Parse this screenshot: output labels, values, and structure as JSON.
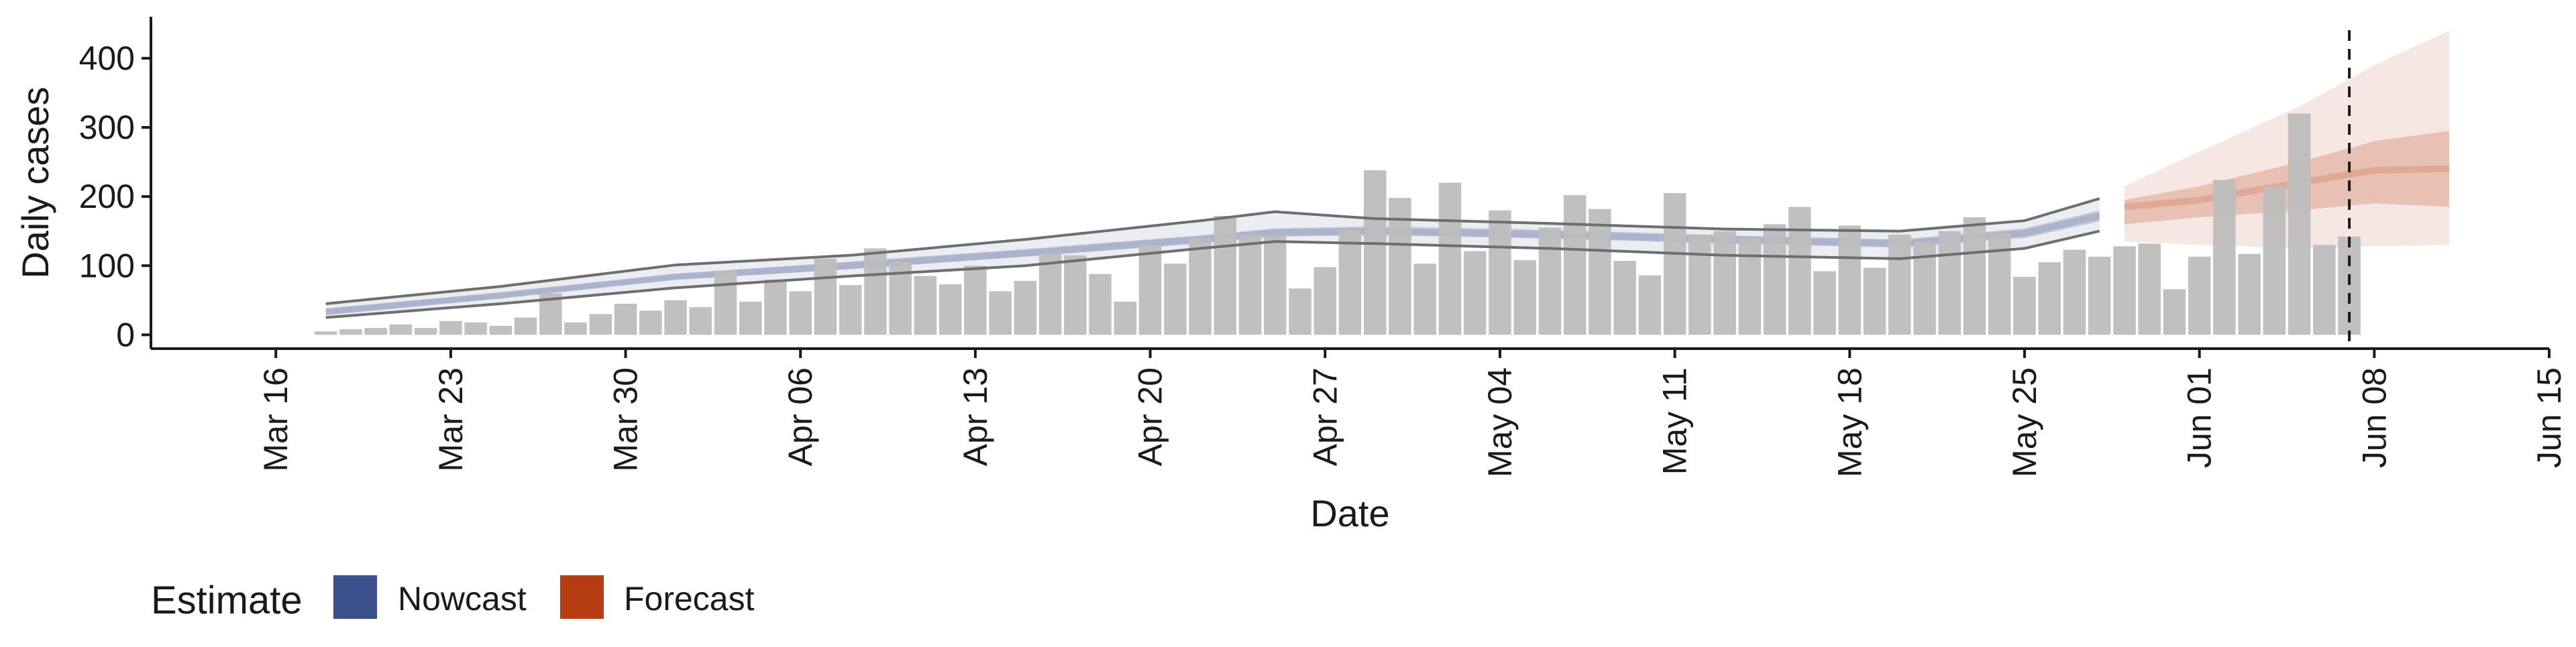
{
  "chart_data": {
    "type": "bar",
    "title": "",
    "xlabel": "Date",
    "ylabel": "Daily cases",
    "ylim": [
      -20,
      460
    ],
    "yticks": [
      0,
      100,
      200,
      300,
      400
    ],
    "xlim": [
      "2020-03-11",
      "2020-06-15"
    ],
    "xticks": [
      "2020-03-16",
      "2020-03-23",
      "2020-03-30",
      "2020-04-06",
      "2020-04-13",
      "2020-04-20",
      "2020-04-27",
      "2020-05-04",
      "2020-05-11",
      "2020-05-18",
      "2020-05-25",
      "2020-06-01",
      "2020-06-08",
      "2020-06-15"
    ],
    "xtick_labels": [
      "Mar 16",
      "Mar 23",
      "Mar 30",
      "Apr 06",
      "Apr 13",
      "Apr 20",
      "Apr 27",
      "May 04",
      "May 11",
      "May 18",
      "May 25",
      "Jun 01",
      "Jun 08",
      "Jun 15"
    ],
    "grid": false,
    "legend": {
      "title": "Estimate",
      "position": "bottom-left"
    },
    "bar_color": "#bdbdbd",
    "observed_cases": {
      "start_date": "2020-03-18",
      "values": [
        5,
        8,
        10,
        15,
        10,
        20,
        18,
        13,
        25,
        60,
        18,
        30,
        45,
        35,
        50,
        40,
        93,
        48,
        80,
        63,
        110,
        72,
        125,
        105,
        85,
        73,
        100,
        63,
        78,
        117,
        115,
        88,
        48,
        130,
        103,
        140,
        172,
        145,
        143,
        67,
        98,
        152,
        238,
        198,
        103,
        220,
        121,
        180,
        108,
        155,
        202,
        182,
        107,
        86,
        205,
        145,
        150,
        140,
        160,
        185,
        92,
        158,
        97,
        145,
        135,
        150,
        170,
        148,
        84,
        105,
        123,
        113,
        128,
        132,
        66,
        113,
        224,
        117,
        214,
        320,
        130,
        142
      ]
    },
    "series": [
      {
        "name": "Nowcast",
        "color": "#3b4f8b",
        "dates": [
          "2020-03-18",
          "2020-03-25",
          "2020-04-01",
          "2020-04-08",
          "2020-04-15",
          "2020-04-22",
          "2020-04-25",
          "2020-04-29",
          "2020-05-06",
          "2020-05-13",
          "2020-05-20",
          "2020-05-25",
          "2020-05-28"
        ],
        "median": [
          33,
          57,
          84,
          100,
          118,
          138,
          148,
          150,
          145,
          138,
          132,
          147,
          172
        ],
        "inner_lower": [
          29,
          53,
          80,
          95,
          113,
          132,
          142,
          144,
          139,
          132,
          126,
          140,
          164
        ],
        "inner_upper": [
          38,
          61,
          88,
          106,
          124,
          144,
          154,
          157,
          152,
          144,
          138,
          154,
          180
        ],
        "lower": [
          25,
          45,
          68,
          85,
          100,
          125,
          135,
          132,
          125,
          115,
          110,
          125,
          150
        ],
        "upper": [
          45,
          70,
          101,
          115,
          138,
          165,
          178,
          168,
          161,
          153,
          150,
          165,
          197
        ]
      },
      {
        "name": "Forecast",
        "color": "#b63c12",
        "dates": [
          "2020-05-29",
          "2020-06-01",
          "2020-06-05",
          "2020-06-08",
          "2020-06-11"
        ],
        "median": [
          185,
          195,
          220,
          238,
          240
        ],
        "inner_lower": [
          160,
          170,
          180,
          190,
          185
        ],
        "inner_upper": [
          195,
          215,
          250,
          280,
          295
        ],
        "lower": [
          135,
          130,
          125,
          128,
          130
        ],
        "upper": [
          215,
          265,
          330,
          390,
          440
        ]
      }
    ],
    "forecast_date": "2020-06-07"
  }
}
